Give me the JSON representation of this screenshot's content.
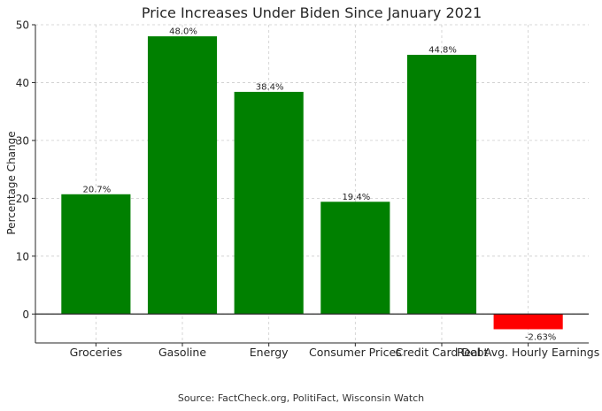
{
  "chart_data": {
    "type": "bar",
    "title": "Price Increases Under Biden Since January 2021",
    "xlabel": "",
    "ylabel": "Percentage Change",
    "categories": [
      "Groceries",
      "Gasoline",
      "Energy",
      "Consumer Prices",
      "Credit Card Debt",
      "Real Avg. Hourly Earnings"
    ],
    "values": [
      20.7,
      48.0,
      38.4,
      19.4,
      44.8,
      -2.63
    ],
    "data_labels": [
      "20.7%",
      "48.0%",
      "38.4%",
      "19.4%",
      "44.8%",
      "-2.63%"
    ],
    "bar_colors": [
      "#008000",
      "#008000",
      "#008000",
      "#008000",
      "#008000",
      "#ff0000"
    ],
    "ylim": [
      -5,
      50
    ],
    "yticks": [
      0,
      10,
      20,
      30,
      40,
      50
    ],
    "grid": true
  },
  "source_text": "Source: FactCheck.org, PolitiFact, Wisconsin Watch"
}
